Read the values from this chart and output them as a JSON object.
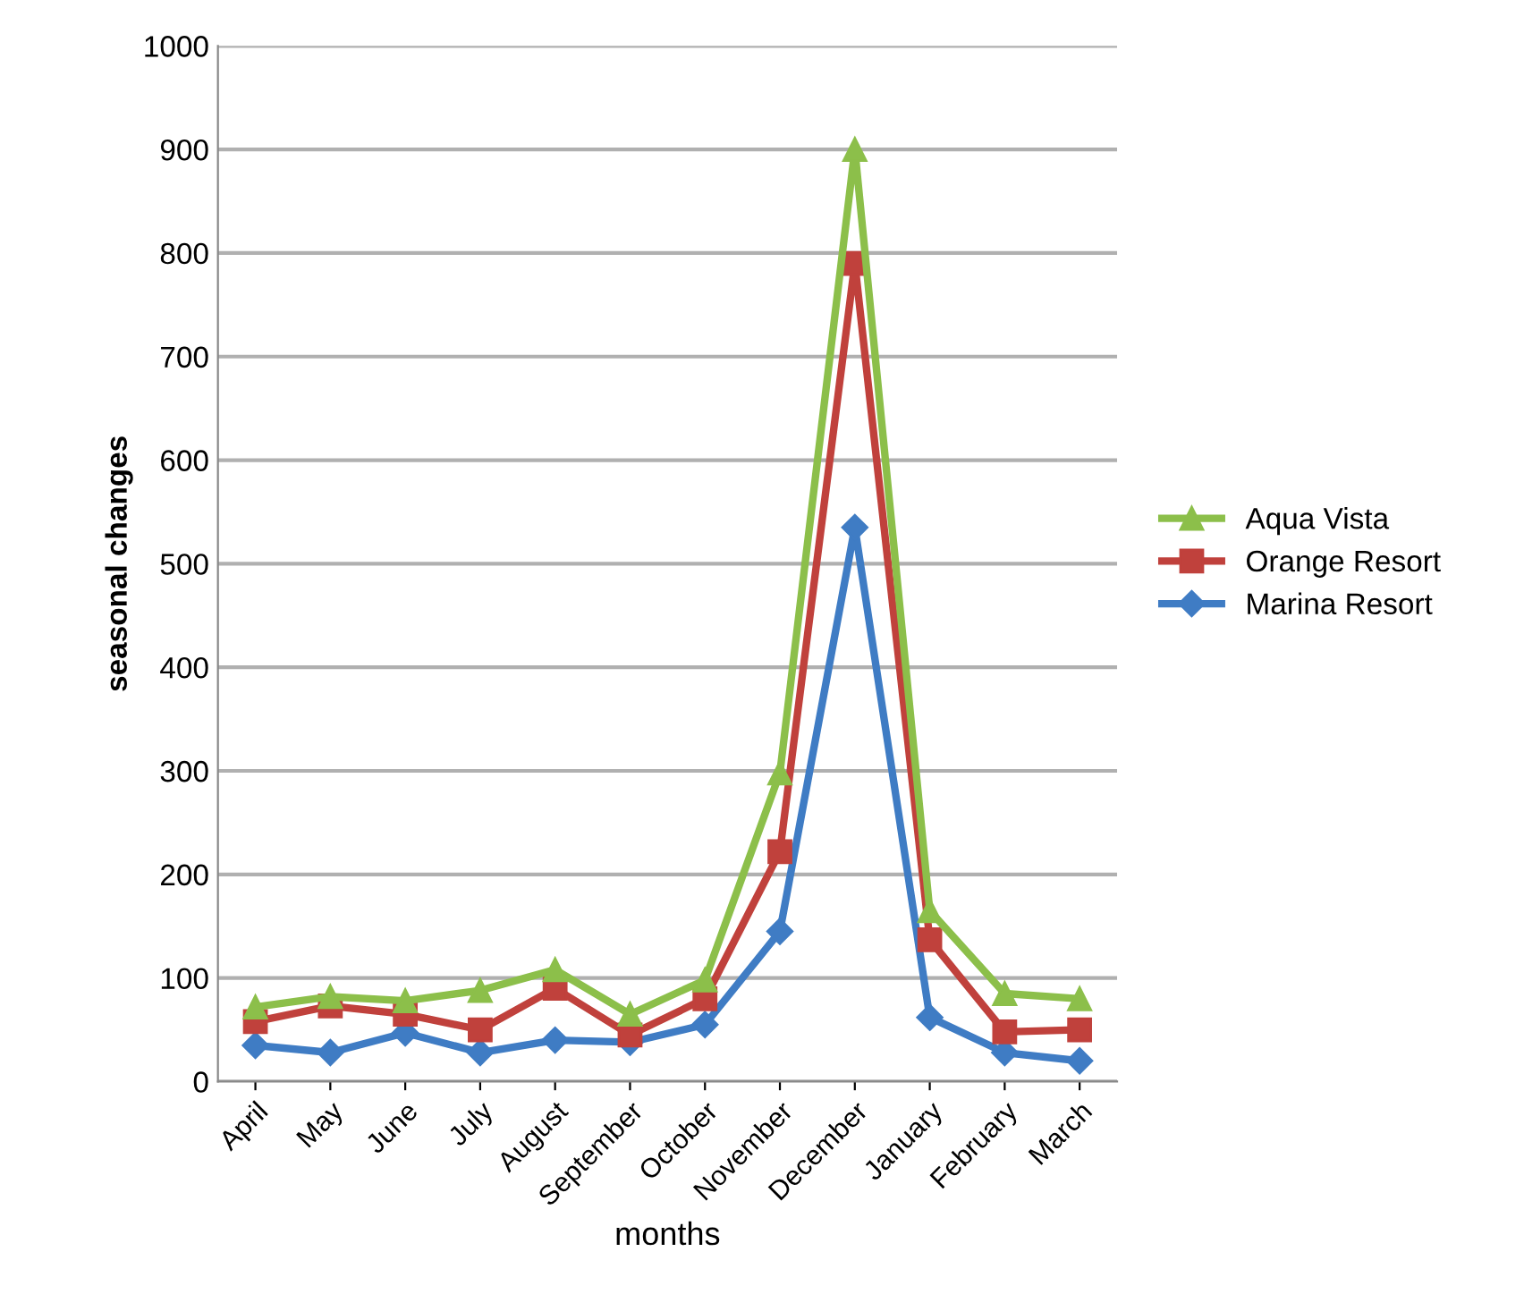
{
  "chart_data": {
    "type": "line",
    "xlabel": "months",
    "ylabel": "seasonal changes",
    "categories": [
      "April",
      "May",
      "June",
      "July",
      "August",
      "September",
      "October",
      "November",
      "December",
      "January",
      "February",
      "March"
    ],
    "series": [
      {
        "name": "Aqua Vista",
        "color": "#8cbf4a",
        "marker": "triangle",
        "values": [
          72,
          82,
          78,
          88,
          108,
          65,
          98,
          298,
          900,
          165,
          85,
          80
        ]
      },
      {
        "name": "Orange Resort",
        "color": "#c0413c",
        "marker": "square",
        "values": [
          58,
          73,
          65,
          50,
          90,
          45,
          80,
          222,
          790,
          137,
          48,
          50
        ]
      },
      {
        "name": "Marina Resort",
        "color": "#3f7cc4",
        "marker": "diamond",
        "values": [
          35,
          28,
          47,
          28,
          40,
          38,
          55,
          145,
          535,
          62,
          28,
          20
        ]
      }
    ],
    "ylim": [
      0,
      1000
    ],
    "yticks": [
      0,
      100,
      200,
      300,
      400,
      500,
      600,
      700,
      800,
      900,
      1000
    ],
    "grid": "y",
    "legend": "right",
    "line_style": "solid"
  }
}
